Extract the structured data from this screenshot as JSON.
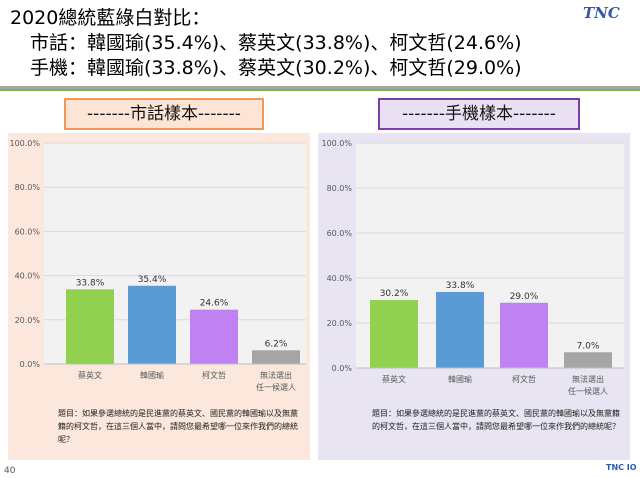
{
  "header": {
    "title": "2020總統藍綠白對比：",
    "landline_line": "市話：韓國瑜(35.4%)、蔡英文(33.8%)、柯文哲(24.6%)",
    "mobile_line": "手機：韓國瑜(33.8%)、蔡英文(30.2%)、柯文哲(29.0%)",
    "logo": "TNC",
    "logo_bottom": "TNC IO"
  },
  "page_number": "40",
  "colors": {
    "green": "#92d050",
    "blue": "#5b9bd5",
    "purple": "#c082f2",
    "gray": "#a5a5a5",
    "accent_orange": "#f0975a",
    "accent_purple": "#7b3fa9"
  },
  "chart_data": [
    {
      "type": "bar",
      "label": "-------市話樣本-------",
      "categories": [
        "蔡英文",
        "韓國瑜",
        "柯文哲",
        "無法選出\n任一候選人"
      ],
      "values": [
        33.8,
        35.4,
        24.6,
        6.2
      ],
      "data_labels": [
        "33.8%",
        "35.4%",
        "24.6%",
        "6.2%"
      ],
      "colors": [
        "#92d050",
        "#5b9bd5",
        "#c082f2",
        "#a5a5a5"
      ],
      "ylim": [
        0,
        100
      ],
      "yticks": [
        "0.0%",
        "20.0%",
        "40.0%",
        "60.0%",
        "80.0%",
        "100.0%"
      ],
      "grid": true,
      "question": "題目：如果參選總統的是民進黨的蔡英文、國民黨的韓國瑜以及無黨籍的柯文哲，在這三個人當中，請問您最希望哪一位來作我們的總統呢？"
    },
    {
      "type": "bar",
      "label": "-------手機樣本-------",
      "categories": [
        "蔡英文",
        "韓國瑜",
        "柯文哲",
        "無法選出\n任一候選人"
      ],
      "values": [
        30.2,
        33.8,
        29.0,
        7.0
      ],
      "data_labels": [
        "30.2%",
        "33.8%",
        "29.0%",
        "7.0%"
      ],
      "colors": [
        "#92d050",
        "#5b9bd5",
        "#c082f2",
        "#a5a5a5"
      ],
      "ylim": [
        0,
        100
      ],
      "yticks": [
        "0.0%",
        "20.0%",
        "40.0%",
        "60.0%",
        "80.0%",
        "100.0%"
      ],
      "grid": true,
      "question": "題目：如果參選總統的是民進黨的蔡英文、國民黨的韓國瑜以及無黨籍的柯文哲，在這三個人當中，請問您最希望哪一位來作我們的總統呢？"
    }
  ]
}
